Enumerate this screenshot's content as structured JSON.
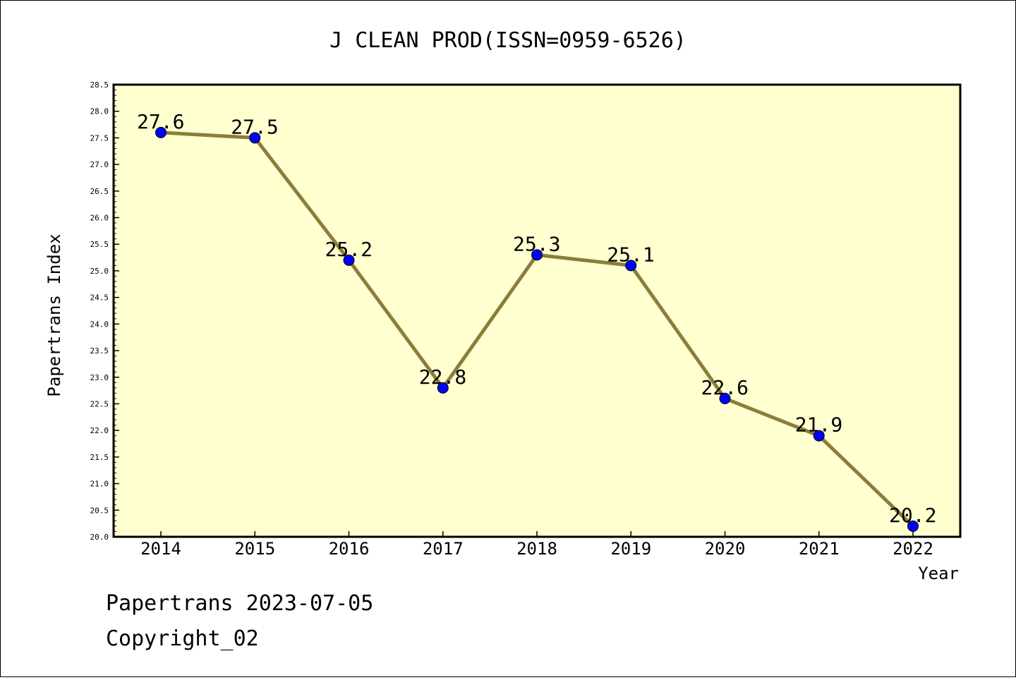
{
  "footer": {
    "line1": "Papertrans 2023-07-05",
    "line2": "Copyright_02"
  },
  "colors": {
    "plot_background": "#ffffd0",
    "line": "#8b7d3a",
    "marker": "#0000ff"
  },
  "chart_data": {
    "type": "line",
    "title": "J CLEAN PROD(ISSN=0959-6526)",
    "xlabel": "Year",
    "ylabel": "Papertrans Index",
    "categories": [
      "2014",
      "2015",
      "2016",
      "2017",
      "2018",
      "2019",
      "2020",
      "2021",
      "2022"
    ],
    "values": [
      27.6,
      27.5,
      25.2,
      22.8,
      25.3,
      25.1,
      22.6,
      21.9,
      20.2
    ],
    "data_labels": [
      "27.6",
      "27.5",
      "25.2",
      "22.8",
      "25.3",
      "25.1",
      "22.6",
      "21.9",
      "20.2"
    ],
    "ylim": [
      20.0,
      28.5
    ],
    "yticks": [
      "20.0",
      "20.5",
      "21.0",
      "21.5",
      "22.0",
      "22.5",
      "23.0",
      "23.5",
      "24.0",
      "24.5",
      "25.0",
      "25.5",
      "26.0",
      "26.5",
      "27.0",
      "27.5",
      "28.0",
      "28.5"
    ],
    "grid": false,
    "legend": "none"
  }
}
